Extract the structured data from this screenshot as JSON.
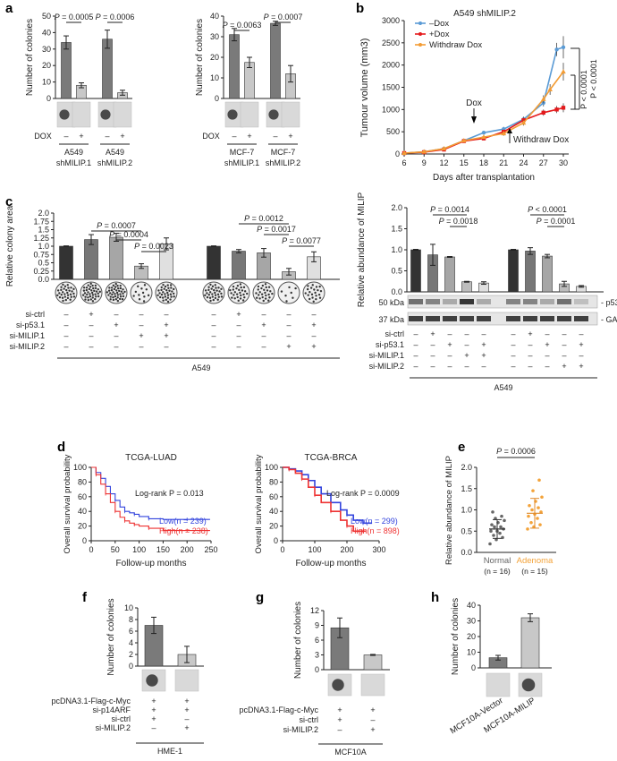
{
  "panel_labels": {
    "a": "a",
    "b": "b",
    "c": "c",
    "d": "d",
    "e": "e",
    "f": "f",
    "g": "g",
    "h": "h"
  },
  "chart_data": [
    {
      "id": "a1",
      "type": "bar",
      "panel": "a",
      "ylabel": "Number of colonies",
      "ylim": [
        0,
        50
      ],
      "yticks": [
        0,
        10,
        20,
        30,
        40,
        50
      ],
      "values": [
        34,
        8,
        36,
        3.5
      ],
      "errors": [
        4,
        1.5,
        5.5,
        1.5
      ],
      "bar_colors": [
        "#7a7a7a",
        "#c8c8c8",
        "#7a7a7a",
        "#c8c8c8"
      ],
      "pvalues": [
        {
          "text": "P = 0.0005",
          "from": 0,
          "to": 1
        },
        {
          "text": "P = 0.0006",
          "from": 2,
          "to": 3
        }
      ],
      "dox_label": "DOX",
      "dox_signs": [
        "–",
        "+",
        "–",
        "+"
      ],
      "groups": [
        {
          "line1": "A549",
          "line2": "shMILIP.1"
        },
        {
          "line1": "A549",
          "line2": "shMILIP.2"
        }
      ]
    },
    {
      "id": "a2",
      "type": "bar",
      "panel": "a",
      "ylabel": "Number of colonies",
      "ylim": [
        0,
        40
      ],
      "yticks": [
        0,
        10,
        20,
        30,
        40
      ],
      "values": [
        31,
        17.5,
        36.5,
        12
      ],
      "errors": [
        3,
        2.5,
        1,
        4
      ],
      "bar_colors": [
        "#7a7a7a",
        "#c8c8c8",
        "#7a7a7a",
        "#c8c8c8"
      ],
      "pvalues": [
        {
          "text": "P = 0.0063",
          "from": 0,
          "to": 1
        },
        {
          "text": "P = 0.0007",
          "from": 2,
          "to": 3
        }
      ],
      "dox_label": "DOX",
      "dox_signs": [
        "–",
        "+",
        "–",
        "+"
      ],
      "groups": [
        {
          "line1": "MCF-7",
          "line2": "shMILIP.1"
        },
        {
          "line1": "MCF-7",
          "line2": "shMILIP.2"
        }
      ]
    },
    {
      "id": "b",
      "type": "line",
      "panel": "b",
      "title": "A549 shMILIP.2",
      "ylabel": "Tumour volume (mm3)",
      "xlabel": "Days after transplantation",
      "x": [
        6,
        9,
        12,
        15,
        18,
        21,
        24,
        27,
        30
      ],
      "ylim": [
        0,
        3000
      ],
      "yticks": [
        0,
        500,
        1000,
        1500,
        2000,
        2500,
        3000
      ],
      "series": [
        {
          "name": "–Dox",
          "color": "#5b9bd5",
          "marker": "circle",
          "values": [
            20,
            50,
            120,
            300,
            480,
            560,
            780,
            1150,
            2350,
            2400
          ],
          "x": [
            6,
            9,
            12,
            15,
            18,
            21,
            24,
            27,
            29,
            30
          ],
          "errors": [
            10,
            15,
            20,
            30,
            40,
            50,
            60,
            80,
            150,
            250
          ]
        },
        {
          "name": "+Dox",
          "color": "#e41a1c",
          "marker": "square",
          "values": [
            20,
            40,
            100,
            290,
            350,
            500,
            760,
            930,
            1000,
            1040
          ],
          "x": [
            6,
            9,
            12,
            15,
            18,
            21,
            24,
            27,
            29,
            30
          ],
          "errors": [
            10,
            15,
            20,
            30,
            40,
            40,
            60,
            70,
            80,
            100
          ]
        },
        {
          "name": "Withdraw Dox",
          "color": "#f39c34",
          "marker": "triangle",
          "values": [
            20,
            50,
            120,
            300,
            380,
            460,
            700,
            1230,
            1450,
            1850
          ],
          "x": [
            6,
            9,
            12,
            15,
            18,
            21,
            24,
            27,
            28,
            30
          ],
          "errors": [
            10,
            15,
            20,
            30,
            40,
            50,
            60,
            90,
            120,
            200
          ]
        }
      ],
      "annotations": {
        "dox": "Dox",
        "withdraw": "Withdraw Dox",
        "p1": "P < 0.0001",
        "p2": "P < 0.0001"
      }
    },
    {
      "id": "c1",
      "type": "bar",
      "panel": "c",
      "ylabel": "Relative colony area",
      "ylim": [
        0,
        2.0
      ],
      "yticks": [
        0,
        0.25,
        0.5,
        0.75,
        1.0,
        1.25,
        1.5,
        1.75,
        2.0
      ],
      "ytick_labels": [
        "0.0",
        "0.25",
        "0.5",
        "0.75",
        "1.0",
        "1.25",
        "1.5",
        "1.75",
        "2.0"
      ],
      "values": [
        1.0,
        1.2,
        1.27,
        0.4,
        1.07,
        1.0,
        0.85,
        0.8,
        0.23,
        0.68
      ],
      "errors": [
        0.01,
        0.15,
        0.12,
        0.07,
        0.18,
        0.01,
        0.05,
        0.13,
        0.1,
        0.15
      ],
      "bar_colors": [
        "#333333",
        "#777777",
        "#a6a6a6",
        "#bdbdbd",
        "#e0e0e0",
        "#333333",
        "#777777",
        "#a6a6a6",
        "#bdbdbd",
        "#e0e0e0"
      ],
      "pvalues": [
        {
          "text": "P = 0.0007",
          "from": 1,
          "to": 3
        },
        {
          "text": "P = 0.0004",
          "from": 2,
          "to": 3
        },
        {
          "text": "P = 0.0023",
          "from": 3,
          "to": 4
        },
        {
          "text": "P = 0.0012",
          "from": 6,
          "to": 8
        },
        {
          "text": "P = 0.0017",
          "from": 7,
          "to": 8
        },
        {
          "text": "P = 0.0077",
          "from": 8,
          "to": 9
        }
      ],
      "rows": [
        {
          "label": "si-ctrl",
          "signs": [
            "–",
            "+",
            "–",
            "–",
            "–",
            "–",
            "+",
            "–",
            "–",
            "–"
          ]
        },
        {
          "label": "si-p53.1",
          "signs": [
            "–",
            "–",
            "+",
            "–",
            "+",
            "–",
            "–",
            "+",
            "–",
            "+"
          ]
        },
        {
          "label": "si-MILIP.1",
          "signs": [
            "–",
            "–",
            "–",
            "+",
            "+",
            "–",
            "–",
            "–",
            "–",
            "–"
          ]
        },
        {
          "label": "si-MILIP.2",
          "signs": [
            "–",
            "–",
            "–",
            "–",
            "–",
            "–",
            "–",
            "–",
            "+",
            "+"
          ]
        }
      ],
      "cell": "A549"
    },
    {
      "id": "c2",
      "type": "bar",
      "panel": "c",
      "ylabel": "Relative abundance of MILIP",
      "ylim": [
        0,
        2.0
      ],
      "yticks": [
        0,
        0.5,
        1.0,
        1.5,
        2.0
      ],
      "ytick_labels": [
        "0.0",
        "0.5",
        "1.0",
        "1.5",
        "2.0"
      ],
      "values": [
        1.0,
        0.88,
        0.83,
        0.24,
        0.21,
        1.0,
        0.97,
        0.85,
        0.19,
        0.13
      ],
      "errors": [
        0.01,
        0.25,
        0.01,
        0.01,
        0.03,
        0.01,
        0.08,
        0.04,
        0.06,
        0.02
      ],
      "bar_colors": [
        "#333333",
        "#777777",
        "#a6a6a6",
        "#bdbdbd",
        "#e0e0e0",
        "#333333",
        "#777777",
        "#a6a6a6",
        "#bdbdbd",
        "#e0e0e0"
      ],
      "pvalues": [
        {
          "text": "P = 0.0014",
          "from": 1,
          "to": 3
        },
        {
          "text": "P = 0.0018",
          "from": 2,
          "to": 3
        },
        {
          "text": "P < 0.0001",
          "from": 6,
          "to": 8
        },
        {
          "text": "P = 0.0001",
          "from": 7,
          "to": 8
        }
      ],
      "blots": {
        "p53_label": "p53",
        "p53_kda": "50 kDa",
        "gapdh_label": "GAPDH",
        "gapdh_kda": "37 kDa"
      },
      "rows": [
        {
          "label": "si-ctrl",
          "signs": [
            "–",
            "+",
            "–",
            "–",
            "–",
            "–",
            "+",
            "–",
            "–",
            "–"
          ]
        },
        {
          "label": "si-p53.1",
          "signs": [
            "–",
            "–",
            "+",
            "–",
            "+",
            "–",
            "–",
            "+",
            "–",
            "+"
          ]
        },
        {
          "label": "si-MILIP.1",
          "signs": [
            "–",
            "–",
            "–",
            "+",
            "+",
            "–",
            "–",
            "–",
            "–",
            "–"
          ]
        },
        {
          "label": "si-MILIP.2",
          "signs": [
            "–",
            "–",
            "–",
            "–",
            "–",
            "–",
            "–",
            "–",
            "+",
            "+"
          ]
        }
      ],
      "cell": "A549"
    },
    {
      "id": "d1",
      "type": "line",
      "panel": "d",
      "title": "TCGA-LUAD",
      "ylabel": "Overall survival probability",
      "xlabel": "Follow-up months",
      "xlim": [
        0,
        250
      ],
      "xticks": [
        0,
        50,
        100,
        150,
        200,
        250
      ],
      "ylim": [
        0,
        100
      ],
      "yticks": [
        0,
        20,
        40,
        60,
        80,
        100
      ],
      "logrank": "Log-rank P = 0.013",
      "series": [
        {
          "name": "Low",
          "n": "n = 239",
          "color": "#3344dd",
          "x": [
            0,
            10,
            20,
            30,
            40,
            50,
            60,
            70,
            80,
            90,
            100,
            120,
            150,
            200,
            240
          ],
          "values": [
            100,
            93,
            85,
            74,
            64,
            55,
            46,
            40,
            38,
            36,
            33,
            30,
            29,
            29,
            29
          ]
        },
        {
          "name": "High",
          "n": "n = 238",
          "color": "#ee3333",
          "x": [
            0,
            10,
            20,
            30,
            40,
            50,
            60,
            70,
            80,
            90,
            100,
            120,
            150,
            200,
            240
          ],
          "values": [
            100,
            90,
            77,
            64,
            52,
            40,
            32,
            27,
            24,
            22,
            20,
            17,
            14,
            14,
            14
          ]
        }
      ]
    },
    {
      "id": "d2",
      "type": "line",
      "panel": "d",
      "title": "TCGA-BRCA",
      "ylabel": "Overall survival probability",
      "xlabel": "Follow-up months",
      "xlim": [
        0,
        300
      ],
      "xticks": [
        0,
        100,
        200,
        300
      ],
      "ylim": [
        0,
        100
      ],
      "yticks": [
        0,
        20,
        40,
        60,
        80,
        100
      ],
      "logrank": "Log-rank P = 0.0009",
      "series": [
        {
          "name": "Low",
          "n": "n = 299",
          "color": "#3344dd",
          "x": [
            0,
            20,
            40,
            60,
            80,
            100,
            120,
            150,
            180,
            200,
            220,
            250,
            270
          ],
          "values": [
            100,
            98,
            95,
            90,
            82,
            73,
            64,
            52,
            42,
            35,
            28,
            24,
            24
          ]
        },
        {
          "name": "High",
          "n": "n = 898",
          "color": "#ee3333",
          "x": [
            0,
            20,
            40,
            60,
            80,
            100,
            120,
            150,
            180,
            200,
            220,
            250
          ],
          "values": [
            100,
            97,
            92,
            84,
            73,
            62,
            52,
            40,
            28,
            20,
            13,
            13
          ]
        }
      ]
    },
    {
      "id": "e",
      "type": "scatter",
      "panel": "e",
      "ylabel": "Relative abundance of MILIP",
      "ylim": [
        0,
        2.0
      ],
      "yticks": [
        0,
        0.5,
        1.0,
        1.5,
        2.0
      ],
      "ytick_labels": [
        "0.0",
        "0.5",
        "1.0",
        "1.5",
        "2.0"
      ],
      "pvalue": "P = 0.0006",
      "groups": [
        {
          "name": "Normal",
          "n": "(n = 16)",
          "color": "#666666",
          "mean": 0.55,
          "sd": 0.22,
          "values": [
            0.2,
            0.3,
            0.35,
            0.4,
            0.45,
            0.5,
            0.5,
            0.55,
            0.6,
            0.6,
            0.65,
            0.7,
            0.75,
            0.8,
            0.85,
            0.95
          ]
        },
        {
          "name": "Adenoma",
          "n": "(n = 15)",
          "color": "#f3a33a",
          "mean": 0.92,
          "sd": 0.35,
          "values": [
            0.55,
            0.6,
            0.65,
            0.7,
            0.8,
            0.85,
            0.9,
            0.95,
            1.0,
            1.05,
            1.1,
            1.2,
            1.3,
            1.45,
            1.7
          ]
        }
      ]
    },
    {
      "id": "f",
      "type": "bar",
      "panel": "f",
      "ylabel": "Number of colonies",
      "ylim": [
        0,
        10
      ],
      "yticks": [
        0,
        2,
        4,
        6,
        8,
        10
      ],
      "values": [
        7,
        2
      ],
      "errors": [
        1.4,
        1.4
      ],
      "bar_colors": [
        "#7a7a7a",
        "#c8c8c8"
      ],
      "rows": [
        {
          "label": "pcDNA3.1-Flag-c-Myc",
          "signs": [
            "+",
            "+"
          ]
        },
        {
          "label": "si-p14ARF",
          "signs": [
            "+",
            "+"
          ]
        },
        {
          "label": "si-ctrl",
          "signs": [
            "+",
            "–"
          ]
        },
        {
          "label": "si-MILIP.2",
          "signs": [
            "–",
            "+"
          ]
        }
      ],
      "cell": "HME-1"
    },
    {
      "id": "g",
      "type": "bar",
      "panel": "g",
      "ylabel": "Number of colonies",
      "ylim": [
        0,
        12
      ],
      "yticks": [
        0,
        3,
        6,
        9,
        12
      ],
      "values": [
        8.5,
        3
      ],
      "errors": [
        2,
        0.1
      ],
      "bar_colors": [
        "#7a7a7a",
        "#c8c8c8"
      ],
      "rows": [
        {
          "label": "pcDNA3.1-Flag-c-Myc",
          "signs": [
            "+",
            "+"
          ]
        },
        {
          "label": "si-ctrl",
          "signs": [
            "+",
            "–"
          ]
        },
        {
          "label": "si-MILIP.2",
          "signs": [
            "–",
            "+"
          ]
        }
      ],
      "cell": "MCF10A"
    },
    {
      "id": "h",
      "type": "bar",
      "panel": "h",
      "ylabel": "Number of colonies",
      "ylim": [
        0,
        40
      ],
      "yticks": [
        0,
        10,
        20,
        30,
        40
      ],
      "values": [
        6.5,
        32
      ],
      "errors": [
        1.5,
        2.5
      ],
      "bar_colors": [
        "#7a7a7a",
        "#c8c8c8"
      ],
      "categories": [
        "MCF10A-Vector",
        "MCF10A-MILIP"
      ]
    }
  ]
}
